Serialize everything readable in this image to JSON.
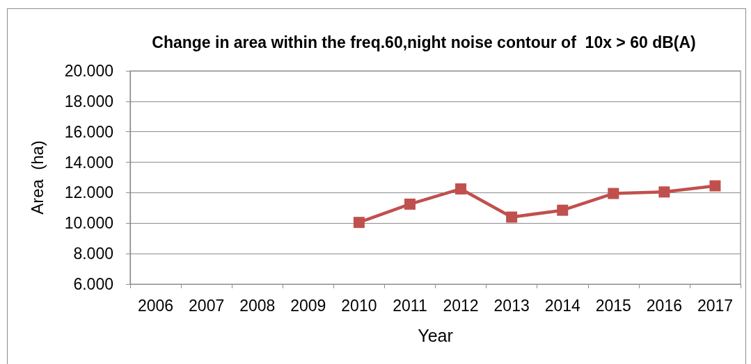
{
  "chart_data": {
    "type": "line",
    "title": "Change in area within the freq.60,night noise contour of  10x > 60 dB(A)",
    "xlabel": "Year",
    "ylabel": "Area  (ha)",
    "categories": [
      "2006",
      "2007",
      "2008",
      "2009",
      "2010",
      "2011",
      "2012",
      "2013",
      "2014",
      "2015",
      "2016",
      "2017"
    ],
    "series": [
      {
        "color": "#c0504d",
        "values": [
          null,
          null,
          null,
          null,
          10050,
          11250,
          12250,
          10400,
          10850,
          11950,
          12050,
          12450
        ]
      }
    ],
    "ylim": [
      6000,
      20000
    ],
    "yticks": [
      {
        "value": 6000,
        "label": "6.000"
      },
      {
        "value": 8000,
        "label": "8.000"
      },
      {
        "value": 10000,
        "label": "10.000"
      },
      {
        "value": 12000,
        "label": "12.000"
      },
      {
        "value": 14000,
        "label": "14.000"
      },
      {
        "value": 16000,
        "label": "16.000"
      },
      {
        "value": 18000,
        "label": "18.000"
      },
      {
        "value": 20000,
        "label": "20.000"
      }
    ],
    "grid": "y",
    "marker": "square",
    "line_style": "solid"
  }
}
